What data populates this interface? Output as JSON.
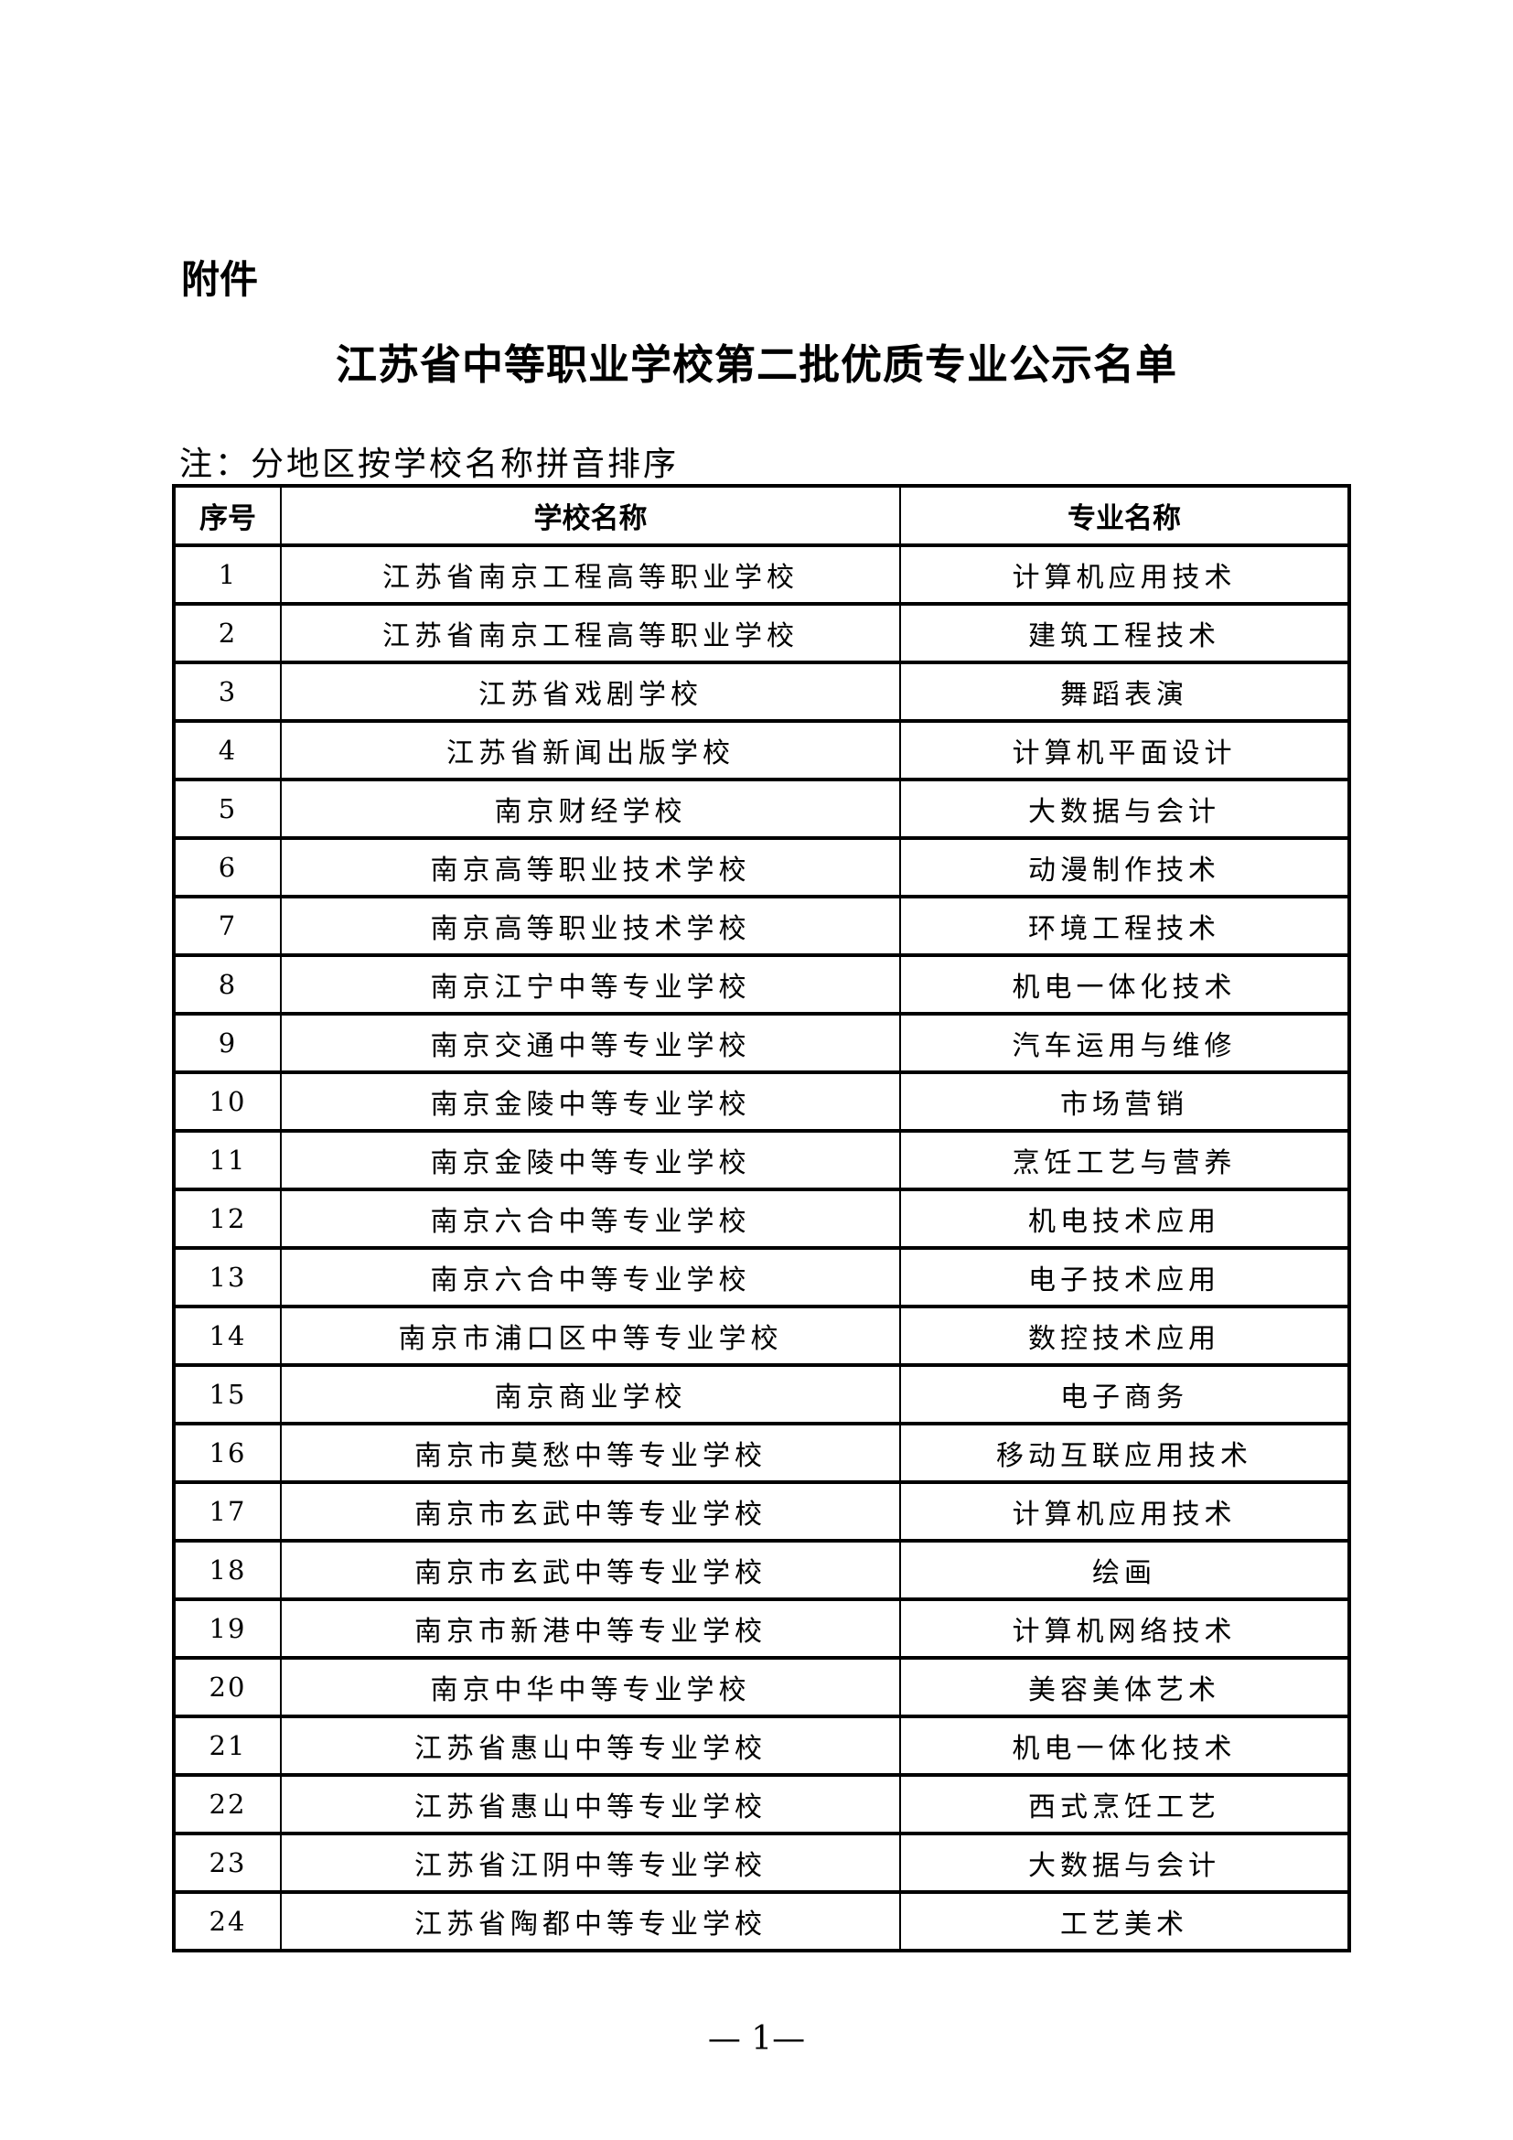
{
  "attachment_label": "附件",
  "title": "江苏省中等职业学校第二批优质专业公示名单",
  "note": "注：分地区按学校名称拼音排序",
  "table": {
    "headers": [
      "序号",
      "学校名称",
      "专业名称"
    ],
    "rows": [
      [
        "1",
        "江苏省南京工程高等职业学校",
        "计算机应用技术"
      ],
      [
        "2",
        "江苏省南京工程高等职业学校",
        "建筑工程技术"
      ],
      [
        "3",
        "江苏省戏剧学校",
        "舞蹈表演"
      ],
      [
        "4",
        "江苏省新闻出版学校",
        "计算机平面设计"
      ],
      [
        "5",
        "南京财经学校",
        "大数据与会计"
      ],
      [
        "6",
        "南京高等职业技术学校",
        "动漫制作技术"
      ],
      [
        "7",
        "南京高等职业技术学校",
        "环境工程技术"
      ],
      [
        "8",
        "南京江宁中等专业学校",
        "机电一体化技术"
      ],
      [
        "9",
        "南京交通中等专业学校",
        "汽车运用与维修"
      ],
      [
        "10",
        "南京金陵中等专业学校",
        "市场营销"
      ],
      [
        "11",
        "南京金陵中等专业学校",
        "烹饪工艺与营养"
      ],
      [
        "12",
        "南京六合中等专业学校",
        "机电技术应用"
      ],
      [
        "13",
        "南京六合中等专业学校",
        "电子技术应用"
      ],
      [
        "14",
        "南京市浦口区中等专业学校",
        "数控技术应用"
      ],
      [
        "15",
        "南京商业学校",
        "电子商务"
      ],
      [
        "16",
        "南京市莫愁中等专业学校",
        "移动互联应用技术"
      ],
      [
        "17",
        "南京市玄武中等专业学校",
        "计算机应用技术"
      ],
      [
        "18",
        "南京市玄武中等专业学校",
        "绘画"
      ],
      [
        "19",
        "南京市新港中等专业学校",
        "计算机网络技术"
      ],
      [
        "20",
        "南京中华中等专业学校",
        "美容美体艺术"
      ],
      [
        "21",
        "江苏省惠山中等专业学校",
        "机电一体化技术"
      ],
      [
        "22",
        "江苏省惠山中等专业学校",
        "西式烹饪工艺"
      ],
      [
        "23",
        "江苏省江阴中等专业学校",
        "大数据与会计"
      ],
      [
        "24",
        "江苏省陶都中等专业学校",
        "工艺美术"
      ]
    ]
  },
  "page_number": "— 1—"
}
